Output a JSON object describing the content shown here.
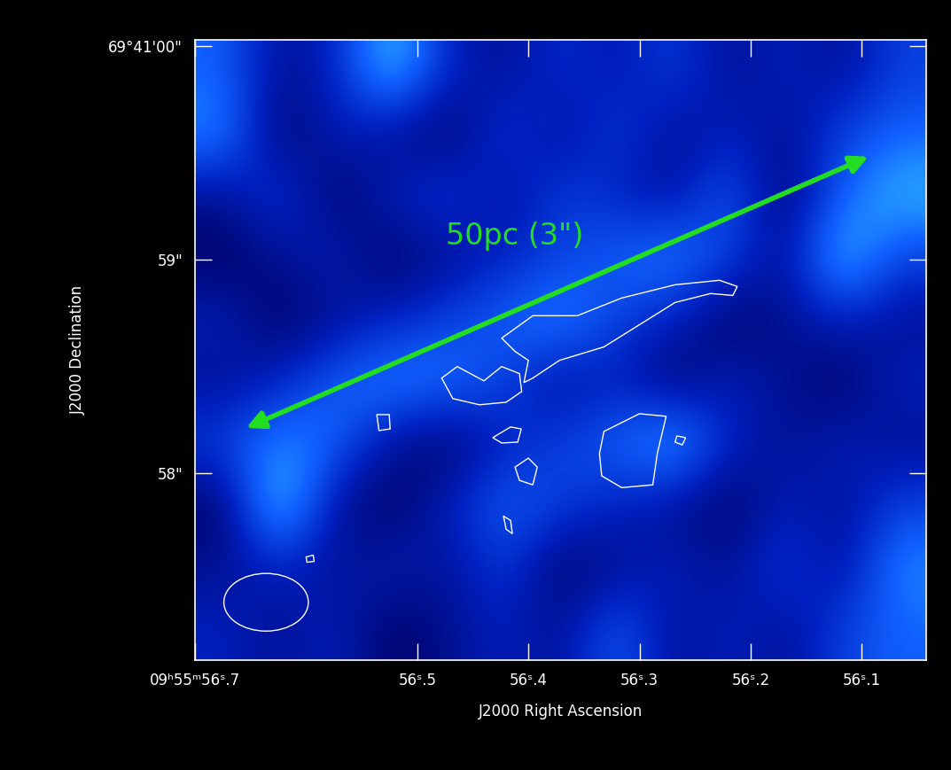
{
  "chart_data": {
    "type": "image",
    "xlabel": "J2000 Right Ascension",
    "ylabel": "J2000 Declination",
    "xlim": [
      56.7,
      56.042
    ],
    "ylim": [
      57.125,
      60.03
    ],
    "xticks": [
      {
        "value": 56.7,
        "label": "09ʰ55ᵐ56ˢ.7"
      },
      {
        "value": 56.5,
        "label": "56ˢ.5"
      },
      {
        "value": 56.4,
        "label": "56ˢ.4"
      },
      {
        "value": 56.3,
        "label": "56ˢ.3"
      },
      {
        "value": 56.2,
        "label": "56ˢ.2"
      },
      {
        "value": 56.1,
        "label": "56ˢ.1"
      }
    ],
    "yticks": [
      {
        "value": 60,
        "label": "69°41'00\""
      },
      {
        "value": 59,
        "label": "59\""
      },
      {
        "value": 58,
        "label": "58\""
      }
    ],
    "cells": [
      [
        0.6,
        0.3,
        0.4,
        0.85,
        0.4,
        0.3,
        0.45,
        0.35,
        0.5,
        0.3,
        0.4,
        0.3,
        0.5
      ],
      [
        0.7,
        0.2,
        0.4,
        0.3,
        0.2,
        0.5,
        0.3,
        0.5,
        0.3,
        0.4,
        0.3,
        0.5,
        0.6
      ],
      [
        0.3,
        0.5,
        0.2,
        0.4,
        0.5,
        0.3,
        0.5,
        0.4,
        0.3,
        0.6,
        0.2,
        0.6,
        0.8
      ],
      [
        0.2,
        0.3,
        0.4,
        0.2,
        0.3,
        0.4,
        0.5,
        0.6,
        0.7,
        0.5,
        0.3,
        0.85,
        0.5
      ],
      [
        0.4,
        0.2,
        0.3,
        0.4,
        0.5,
        0.6,
        0.7,
        0.5,
        0.4,
        0.2,
        0.3,
        0.4,
        0.3
      ],
      [
        0.3,
        0.4,
        0.6,
        0.7,
        0.65,
        0.5,
        0.3,
        0.4,
        0.2,
        0.4,
        0.3,
        0.2,
        0.4
      ],
      [
        0.5,
        0.7,
        0.6,
        0.3,
        0.2,
        0.4,
        0.5,
        0.6,
        0.8,
        0.4,
        0.3,
        0.4,
        0.3
      ],
      [
        0.2,
        0.9,
        0.3,
        0.2,
        0.4,
        0.6,
        0.5,
        0.4,
        0.3,
        0.2,
        0.4,
        0.3,
        0.5
      ],
      [
        0.3,
        0.4,
        0.3,
        0.4,
        0.3,
        0.5,
        0.2,
        0.3,
        0.4,
        0.3,
        0.5,
        0.3,
        0.7
      ],
      [
        0.4,
        0.3,
        0.4,
        0.2,
        0.3,
        0.4,
        0.3,
        0.6,
        0.3,
        0.4,
        0.3,
        0.5,
        0.6
      ]
    ],
    "contours": [
      [
        [
          56.424,
          58.633
        ],
        [
          56.396,
          58.738
        ],
        [
          56.356,
          58.738
        ],
        [
          56.316,
          58.821
        ],
        [
          56.268,
          58.883
        ],
        [
          56.228,
          58.904
        ],
        [
          56.212,
          58.875
        ],
        [
          56.216,
          58.833
        ],
        [
          56.236,
          58.842
        ],
        [
          56.268,
          58.8
        ],
        [
          56.3,
          58.696
        ],
        [
          56.332,
          58.592
        ],
        [
          56.372,
          58.529
        ],
        [
          56.396,
          58.446
        ],
        [
          56.404,
          58.425
        ],
        [
          56.4,
          58.529
        ],
        [
          56.412,
          58.571
        ]
      ],
      [
        [
          56.478,
          58.446
        ],
        [
          56.464,
          58.5
        ],
        [
          56.44,
          58.433
        ],
        [
          56.424,
          58.5
        ],
        [
          56.408,
          58.467
        ],
        [
          56.406,
          58.383
        ],
        [
          56.42,
          58.333
        ],
        [
          56.444,
          58.321
        ],
        [
          56.468,
          58.35
        ]
      ],
      [
        [
          56.332,
          58.196
        ],
        [
          56.3,
          58.279
        ],
        [
          56.276,
          58.267
        ],
        [
          56.284,
          58.092
        ],
        [
          56.288,
          57.946
        ],
        [
          56.316,
          57.933
        ],
        [
          56.334,
          57.988
        ],
        [
          56.336,
          58.092
        ]
      ],
      [
        [
          56.5364,
          58.275
        ],
        [
          56.5252,
          58.275
        ],
        [
          56.5244,
          58.208
        ],
        [
          56.5344,
          58.2
        ]
      ],
      [
        [
          56.432,
          58.167
        ],
        [
          56.416,
          58.217
        ],
        [
          56.4064,
          58.208
        ],
        [
          56.4096,
          58.146
        ],
        [
          56.424,
          58.142
        ]
      ],
      [
        [
          56.412,
          58.029
        ],
        [
          56.4,
          58.071
        ],
        [
          56.392,
          58.029
        ],
        [
          56.396,
          57.946
        ],
        [
          56.408,
          57.967
        ]
      ],
      [
        [
          56.4224,
          57.8
        ],
        [
          56.416,
          57.779
        ],
        [
          56.4144,
          57.717
        ],
        [
          56.42,
          57.738
        ]
      ],
      [
        [
          56.2664,
          58.175
        ],
        [
          56.2584,
          58.167
        ],
        [
          56.2616,
          58.133
        ],
        [
          56.268,
          58.146
        ]
      ],
      [
        [
          56.6,
          57.6083
        ],
        [
          56.5936,
          57.6167
        ],
        [
          56.5928,
          57.5875
        ],
        [
          56.5992,
          57.5833
        ]
      ]
    ],
    "beam": {
      "x": 56.636,
      "y": 57.396,
      "width": 0.076,
      "height": 0.27
    },
    "annotations": [
      {
        "text": "50pc (3\")",
        "x": 56.412,
        "y": 59.11,
        "arrow_from": [
          56.092,
          59.4875
        ],
        "arrow_to": [
          56.656,
          58.208
        ],
        "color": "#22dd22"
      }
    ]
  }
}
